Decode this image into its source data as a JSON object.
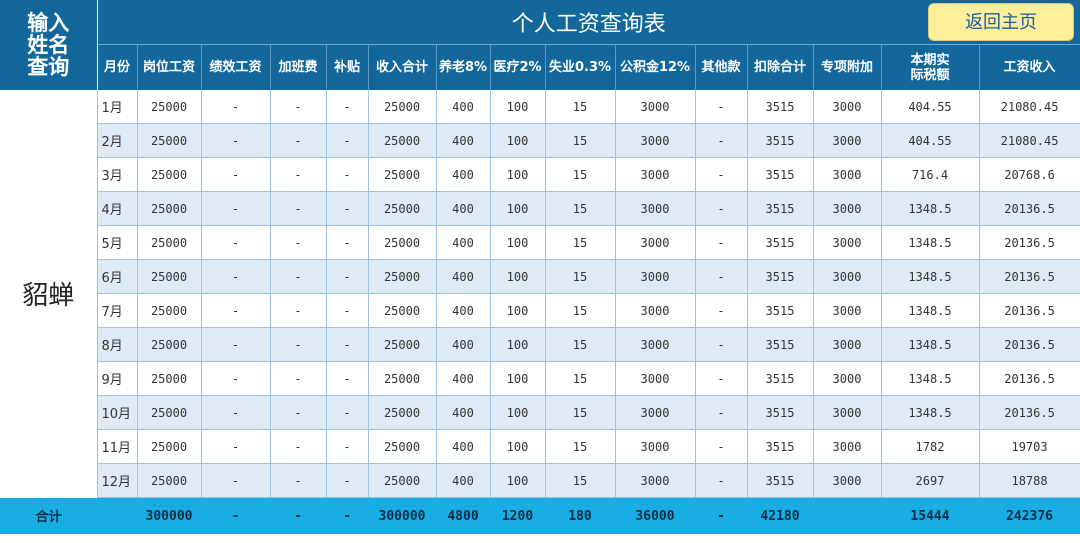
{
  "sidebar_header": {
    "line1": "输入",
    "line2": "姓名",
    "line3": "查询"
  },
  "title": "个人工资查询表",
  "return_button": "返回主页",
  "employee_name": "貂蝉",
  "columns": [
    "月份",
    "岗位工资",
    "绩效工资",
    "加班费",
    "补贴",
    "收入合计",
    "养老8%",
    "医疗2%",
    "失业0.3%",
    "公积金12%",
    "其他款",
    "扣除合计",
    "专项附加",
    "本期实际税额",
    "工资收入"
  ],
  "tax_header": {
    "line1": "本期实",
    "line2": "际税额"
  },
  "rows": [
    [
      "1月",
      "25000",
      "-",
      "-",
      "-",
      "25000",
      "400",
      "100",
      "15",
      "3000",
      "-",
      "3515",
      "3000",
      "404.55",
      "21080.45"
    ],
    [
      "2月",
      "25000",
      "-",
      "-",
      "-",
      "25000",
      "400",
      "100",
      "15",
      "3000",
      "-",
      "3515",
      "3000",
      "404.55",
      "21080.45"
    ],
    [
      "3月",
      "25000",
      "-",
      "-",
      "-",
      "25000",
      "400",
      "100",
      "15",
      "3000",
      "-",
      "3515",
      "3000",
      "716.4",
      "20768.6"
    ],
    [
      "4月",
      "25000",
      "-",
      "-",
      "-",
      "25000",
      "400",
      "100",
      "15",
      "3000",
      "-",
      "3515",
      "3000",
      "1348.5",
      "20136.5"
    ],
    [
      "5月",
      "25000",
      "-",
      "-",
      "-",
      "25000",
      "400",
      "100",
      "15",
      "3000",
      "-",
      "3515",
      "3000",
      "1348.5",
      "20136.5"
    ],
    [
      "6月",
      "25000",
      "-",
      "-",
      "-",
      "25000",
      "400",
      "100",
      "15",
      "3000",
      "-",
      "3515",
      "3000",
      "1348.5",
      "20136.5"
    ],
    [
      "7月",
      "25000",
      "-",
      "-",
      "-",
      "25000",
      "400",
      "100",
      "15",
      "3000",
      "-",
      "3515",
      "3000",
      "1348.5",
      "20136.5"
    ],
    [
      "8月",
      "25000",
      "-",
      "-",
      "-",
      "25000",
      "400",
      "100",
      "15",
      "3000",
      "-",
      "3515",
      "3000",
      "1348.5",
      "20136.5"
    ],
    [
      "9月",
      "25000",
      "-",
      "-",
      "-",
      "25000",
      "400",
      "100",
      "15",
      "3000",
      "-",
      "3515",
      "3000",
      "1348.5",
      "20136.5"
    ],
    [
      "10月",
      "25000",
      "-",
      "-",
      "-",
      "25000",
      "400",
      "100",
      "15",
      "3000",
      "-",
      "3515",
      "3000",
      "1348.5",
      "20136.5"
    ],
    [
      "11月",
      "25000",
      "-",
      "-",
      "-",
      "25000",
      "400",
      "100",
      "15",
      "3000",
      "-",
      "3515",
      "3000",
      "1782",
      "19703"
    ],
    [
      "12月",
      "25000",
      "-",
      "-",
      "-",
      "25000",
      "400",
      "100",
      "15",
      "3000",
      "-",
      "3515",
      "3000",
      "2697",
      "18788"
    ]
  ],
  "total": {
    "label": "合计",
    "values": [
      "300000",
      "-",
      "-",
      "-",
      "300000",
      "4800",
      "1200",
      "180",
      "36000",
      "-",
      "42180",
      "",
      "15444",
      "242376"
    ]
  },
  "colors": {
    "header": "#14679b",
    "alt_row": "#deebf7",
    "total_row": "#18aee3",
    "button": "#ffef9c"
  }
}
